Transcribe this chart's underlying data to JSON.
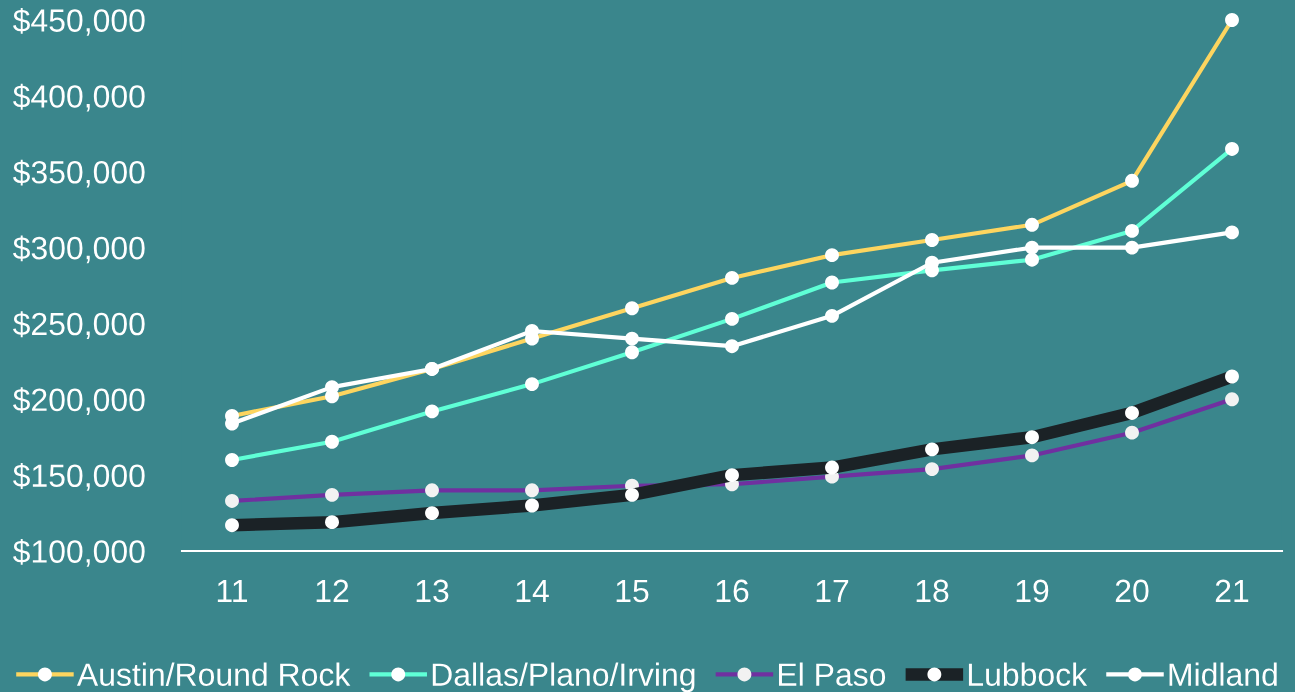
{
  "chart_data": {
    "type": "line",
    "categories": [
      "11",
      "12",
      "13",
      "14",
      "15",
      "16",
      "17",
      "18",
      "19",
      "20",
      "21"
    ],
    "ylim": [
      100000,
      450000
    ],
    "yticks": [
      {
        "value": 100000,
        "label": "$100,000"
      },
      {
        "value": 150000,
        "label": "$150,000"
      },
      {
        "value": 200000,
        "label": "$200,000"
      },
      {
        "value": 250000,
        "label": "$250,000"
      },
      {
        "value": 300000,
        "label": "$300,000"
      },
      {
        "value": 350000,
        "label": "$350,000"
      },
      {
        "value": 400000,
        "label": "$400,000"
      },
      {
        "value": 450000,
        "label": "$450,000"
      }
    ],
    "grid": false,
    "legend": "bottom",
    "marker": "circle",
    "line_style": "solid",
    "series": [
      {
        "name": "Austin/Round Rock",
        "color": "#fdd55f",
        "values": [
          189000,
          202000,
          220000,
          240000,
          260000,
          280000,
          295000,
          305000,
          315000,
          344000,
          450000
        ]
      },
      {
        "name": "Dallas/Plano/Irving",
        "color": "#5fffd6",
        "values": [
          160000,
          172000,
          192000,
          210000,
          231000,
          253000,
          277000,
          285000,
          292000,
          311000,
          365000
        ]
      },
      {
        "name": "El Paso",
        "color": "#7030a0",
        "values": [
          133000,
          137000,
          140000,
          140000,
          143000,
          144000,
          149000,
          154000,
          163000,
          178000,
          200000
        ]
      },
      {
        "name": "Lubbock",
        "color": "#1b2226",
        "values": [
          117000,
          119000,
          125000,
          130000,
          137000,
          150000,
          155000,
          167000,
          175000,
          191000,
          215000
        ]
      },
      {
        "name": "Midland",
        "color": "#ffffff",
        "values": [
          184000,
          208000,
          220000,
          245000,
          240000,
          235000,
          255000,
          290000,
          300000,
          300000,
          310000
        ]
      }
    ]
  }
}
